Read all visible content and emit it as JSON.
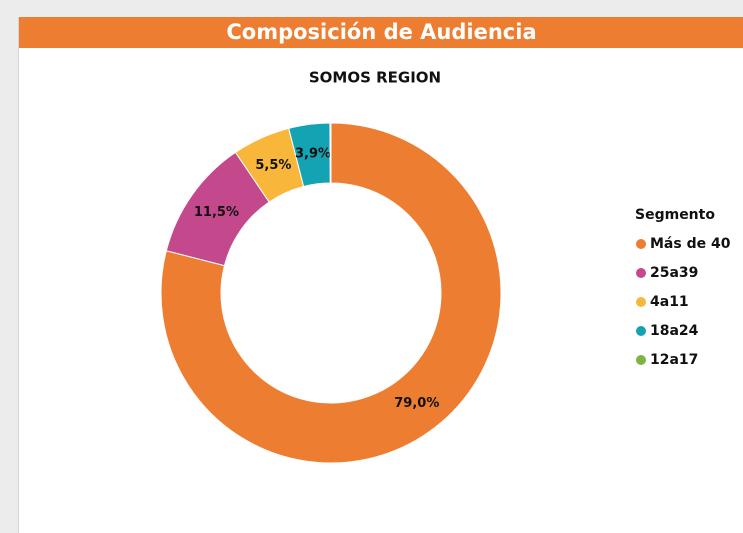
{
  "header": {
    "title": "Composición de Audiencia"
  },
  "chart_data": {
    "type": "donut",
    "title": "SOMOS REGION",
    "legend_title": "Segmento",
    "legend": "right",
    "categories": [
      "Más de 40",
      "25a39",
      "4a11",
      "18a24",
      "12a17"
    ],
    "values": [
      79.0,
      11.5,
      5.5,
      3.9,
      0.1
    ],
    "value_labels": [
      "79,0%",
      "11,5%",
      "5,5%",
      "3,9%",
      null
    ],
    "colors": [
      "#ed7d31",
      "#c4488c",
      "#f8b63a",
      "#14a3b3",
      "#7cb342"
    ]
  }
}
